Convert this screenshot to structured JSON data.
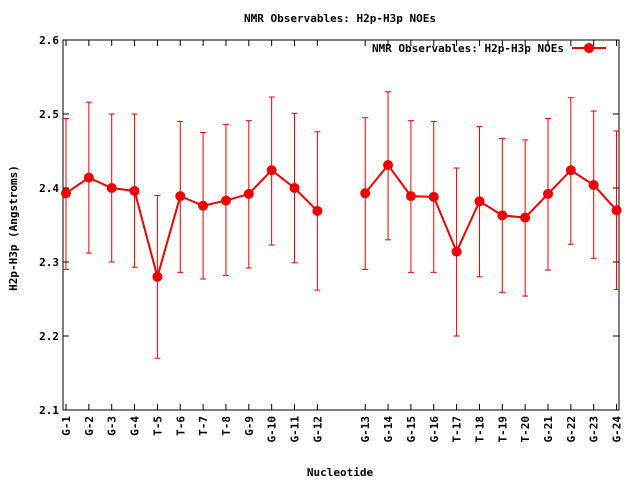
{
  "chart_data": {
    "type": "line",
    "title": "NMR Observables: H2p-H3p NOEs",
    "xlabel": "Nucleotide",
    "ylabel": "H2p-H3p (Angstroms)",
    "ylim": [
      2.1,
      2.6
    ],
    "yticks": [
      "2.1",
      "2.2",
      "2.3",
      "2.4",
      "2.5",
      "2.6"
    ],
    "legend": {
      "label": "NMR Observables: H2p-H3p NOEs",
      "position": "top-right"
    },
    "color": "#ee0000",
    "categories": [
      "G-1",
      "G-2",
      "G-3",
      "G-4",
      "T-5",
      "T-6",
      "T-7",
      "T-8",
      "G-9",
      "G-10",
      "G-11",
      "G-12",
      "G-13",
      "G-14",
      "G-15",
      "G-16",
      "T-17",
      "T-18",
      "T-19",
      "T-20",
      "G-21",
      "G-22",
      "G-23",
      "G-24"
    ],
    "segments": [
      [
        0,
        11
      ],
      [
        12,
        23
      ]
    ],
    "series": [
      {
        "name": "NMR Observables: H2p-H3p NOEs",
        "values": [
          2.393,
          2.414,
          2.4,
          2.396,
          2.28,
          2.389,
          2.376,
          2.383,
          2.392,
          2.424,
          2.4,
          2.369,
          2.393,
          2.431,
          2.389,
          2.388,
          2.314,
          2.382,
          2.363,
          2.36,
          2.392,
          2.424,
          2.404,
          2.37
        ],
        "err_low": [
          2.29,
          2.312,
          2.3,
          2.293,
          2.17,
          2.286,
          2.277,
          2.282,
          2.292,
          2.323,
          2.299,
          2.262,
          2.29,
          2.33,
          2.286,
          2.286,
          2.2,
          2.28,
          2.259,
          2.254,
          2.289,
          2.324,
          2.305,
          2.263
        ],
        "err_high": [
          2.494,
          2.516,
          2.5,
          2.5,
          2.39,
          2.49,
          2.475,
          2.486,
          2.491,
          2.523,
          2.501,
          2.476,
          2.495,
          2.53,
          2.491,
          2.49,
          2.427,
          2.483,
          2.467,
          2.465,
          2.494,
          2.522,
          2.504,
          2.477
        ]
      }
    ]
  }
}
